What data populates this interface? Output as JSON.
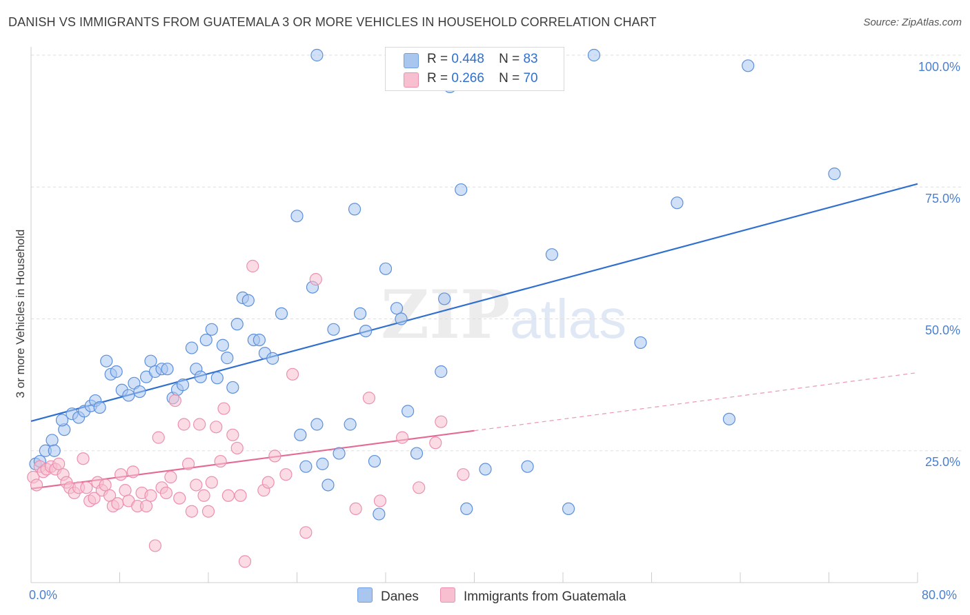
{
  "header": {
    "title": "DANISH VS IMMIGRANTS FROM GUATEMALA 3 OR MORE VEHICLES IN HOUSEHOLD CORRELATION CHART",
    "source": "Source: ZipAtlas.com"
  },
  "watermark": {
    "zip": "ZIP",
    "atlas": "atlas"
  },
  "legend": {
    "rows": [
      {
        "r_label": "R =",
        "r_value": "0.448",
        "n_label": "N =",
        "n_value": "83",
        "color": "#a9c6ef",
        "stroke": "#6f9fe0"
      },
      {
        "r_label": "R =",
        "r_value": "0.266",
        "n_label": "N =",
        "n_value": "70",
        "color": "#f8bfd0",
        "stroke": "#ec8fae"
      }
    ]
  },
  "bottom_legend": {
    "series1": "Danes",
    "series2": "Immigrants from Guatemala"
  },
  "axes": {
    "ylabel": "3 or more Vehicles in Household",
    "yticks": [
      "100.0%",
      "75.0%",
      "50.0%",
      "25.0%"
    ],
    "xticks": [
      "0.0%",
      "80.0%"
    ]
  },
  "chart_data": {
    "type": "scatter",
    "title": "DANISH VS IMMIGRANTS FROM GUATEMALA 3 OR MORE VEHICLES IN HOUSEHOLD CORRELATION CHART",
    "xlabel": "",
    "ylabel": "3 or more Vehicles in Household",
    "xlim": [
      0,
      80
    ],
    "ylim": [
      0,
      102
    ],
    "grid": true,
    "legend_placement": "top-center",
    "series": [
      {
        "name": "Danes",
        "color": "#5b8fdc",
        "fill": "#a9c6ef",
        "trend": {
          "x": [
            0,
            80
          ],
          "y": [
            30.6,
            75.6
          ],
          "style": "solid",
          "color": "#2f6fcf"
        },
        "points": [
          [
            0.4,
            22.5
          ],
          [
            0.8,
            23.0
          ],
          [
            1.3,
            25.0
          ],
          [
            1.9,
            27.0
          ],
          [
            2.1,
            25.0
          ],
          [
            3.0,
            29.0
          ],
          [
            2.8,
            30.8
          ],
          [
            3.7,
            32.0
          ],
          [
            4.3,
            31.3
          ],
          [
            4.8,
            32.5
          ],
          [
            5.4,
            33.5
          ],
          [
            5.8,
            34.5
          ],
          [
            6.2,
            33.2
          ],
          [
            6.8,
            42.0
          ],
          [
            7.2,
            39.5
          ],
          [
            7.7,
            40.0
          ],
          [
            8.2,
            36.5
          ],
          [
            8.8,
            35.5
          ],
          [
            9.3,
            37.8
          ],
          [
            9.8,
            36.2
          ],
          [
            10.4,
            39.0
          ],
          [
            10.8,
            42.0
          ],
          [
            11.2,
            40.0
          ],
          [
            11.8,
            40.5
          ],
          [
            12.3,
            40.5
          ],
          [
            12.8,
            35.0
          ],
          [
            13.2,
            36.6
          ],
          [
            13.7,
            37.5
          ],
          [
            14.5,
            44.5
          ],
          [
            14.9,
            40.5
          ],
          [
            15.3,
            39.0
          ],
          [
            15.8,
            46.0
          ],
          [
            16.3,
            48.0
          ],
          [
            16.8,
            38.8
          ],
          [
            17.3,
            45.0
          ],
          [
            17.7,
            42.6
          ],
          [
            18.2,
            37.0
          ],
          [
            18.6,
            49.0
          ],
          [
            19.1,
            54.0
          ],
          [
            19.6,
            53.5
          ],
          [
            20.1,
            46.0
          ],
          [
            20.6,
            46.0
          ],
          [
            21.1,
            43.5
          ],
          [
            21.8,
            42.5
          ],
          [
            22.6,
            51.0
          ],
          [
            24.0,
            69.5
          ],
          [
            24.3,
            28.0
          ],
          [
            24.8,
            22.0
          ],
          [
            25.4,
            56.0
          ],
          [
            25.8,
            30.0
          ],
          [
            26.3,
            22.5
          ],
          [
            26.8,
            18.5
          ],
          [
            27.3,
            48.0
          ],
          [
            27.8,
            24.5
          ],
          [
            28.8,
            30.0
          ],
          [
            29.2,
            70.8
          ],
          [
            29.7,
            51.0
          ],
          [
            30.2,
            47.7
          ],
          [
            31.0,
            23.0
          ],
          [
            31.4,
            13.0
          ],
          [
            32.0,
            59.5
          ],
          [
            33.0,
            52.0
          ],
          [
            33.4,
            50.0
          ],
          [
            34.0,
            32.5
          ],
          [
            34.8,
            24.5
          ],
          [
            37.0,
            40.0
          ],
          [
            37.3,
            53.8
          ],
          [
            37.8,
            94.0
          ],
          [
            38.8,
            74.5
          ],
          [
            39.3,
            14.0
          ],
          [
            41.0,
            21.5
          ],
          [
            42.0,
            100.0
          ],
          [
            44.8,
            22.0
          ],
          [
            47.0,
            62.2
          ],
          [
            48.5,
            14.0
          ],
          [
            50.8,
            100.0
          ],
          [
            55.0,
            45.5
          ],
          [
            58.3,
            72.0
          ],
          [
            63.0,
            31.0
          ],
          [
            64.7,
            98.0
          ],
          [
            72.5,
            77.5
          ],
          [
            25.8,
            100.0
          ],
          [
            43.8,
            100.0
          ]
        ]
      },
      {
        "name": "Immigrants from Guatemala",
        "color": "#ec8fae",
        "fill": "#f8bfd0",
        "trend": {
          "x": [
            0,
            40
          ],
          "y": [
            17.8,
            28.8
          ],
          "style": "solid",
          "dashed_extension": {
            "x": [
              40,
              80
            ],
            "y": [
              28.8,
              39.8
            ]
          },
          "color": "#e46a95"
        },
        "points": [
          [
            0.2,
            20.0
          ],
          [
            0.5,
            18.5
          ],
          [
            0.8,
            22.0
          ],
          [
            1.1,
            21.0
          ],
          [
            1.4,
            21.5
          ],
          [
            1.8,
            22.0
          ],
          [
            2.2,
            21.5
          ],
          [
            2.5,
            22.5
          ],
          [
            2.9,
            20.5
          ],
          [
            3.2,
            19.0
          ],
          [
            3.5,
            18.0
          ],
          [
            3.9,
            17.0
          ],
          [
            4.3,
            18.0
          ],
          [
            4.7,
            23.5
          ],
          [
            5.0,
            18.0
          ],
          [
            5.3,
            15.5
          ],
          [
            5.7,
            16.0
          ],
          [
            6.0,
            19.0
          ],
          [
            6.4,
            17.5
          ],
          [
            6.7,
            18.5
          ],
          [
            7.1,
            16.5
          ],
          [
            7.4,
            14.5
          ],
          [
            7.8,
            15.0
          ],
          [
            8.1,
            20.5
          ],
          [
            8.5,
            17.5
          ],
          [
            8.8,
            15.5
          ],
          [
            9.2,
            21.0
          ],
          [
            9.6,
            14.5
          ],
          [
            10.0,
            17.0
          ],
          [
            10.4,
            14.5
          ],
          [
            10.8,
            16.5
          ],
          [
            11.2,
            7.0
          ],
          [
            11.5,
            27.5
          ],
          [
            11.8,
            18.0
          ],
          [
            12.2,
            17.0
          ],
          [
            12.6,
            20.0
          ],
          [
            13.0,
            34.5
          ],
          [
            13.4,
            16.0
          ],
          [
            13.8,
            30.0
          ],
          [
            14.2,
            22.5
          ],
          [
            14.5,
            13.5
          ],
          [
            14.9,
            18.5
          ],
          [
            15.2,
            30.0
          ],
          [
            15.6,
            16.5
          ],
          [
            16.0,
            13.5
          ],
          [
            16.3,
            19.0
          ],
          [
            16.7,
            29.5
          ],
          [
            17.1,
            23.0
          ],
          [
            17.4,
            33.0
          ],
          [
            17.8,
            16.5
          ],
          [
            18.2,
            28.0
          ],
          [
            18.6,
            25.5
          ],
          [
            18.9,
            16.5
          ],
          [
            19.3,
            4.0
          ],
          [
            20.0,
            60.0
          ],
          [
            21.0,
            17.5
          ],
          [
            21.4,
            19.0
          ],
          [
            22.0,
            24.0
          ],
          [
            23.0,
            20.5
          ],
          [
            23.6,
            39.5
          ],
          [
            24.8,
            9.5
          ],
          [
            25.7,
            57.5
          ],
          [
            29.3,
            14.0
          ],
          [
            30.5,
            35.0
          ],
          [
            31.5,
            15.5
          ],
          [
            33.5,
            27.5
          ],
          [
            35.0,
            18.0
          ],
          [
            36.5,
            26.5
          ],
          [
            37.0,
            30.5
          ],
          [
            39.0,
            20.5
          ]
        ]
      }
    ]
  }
}
